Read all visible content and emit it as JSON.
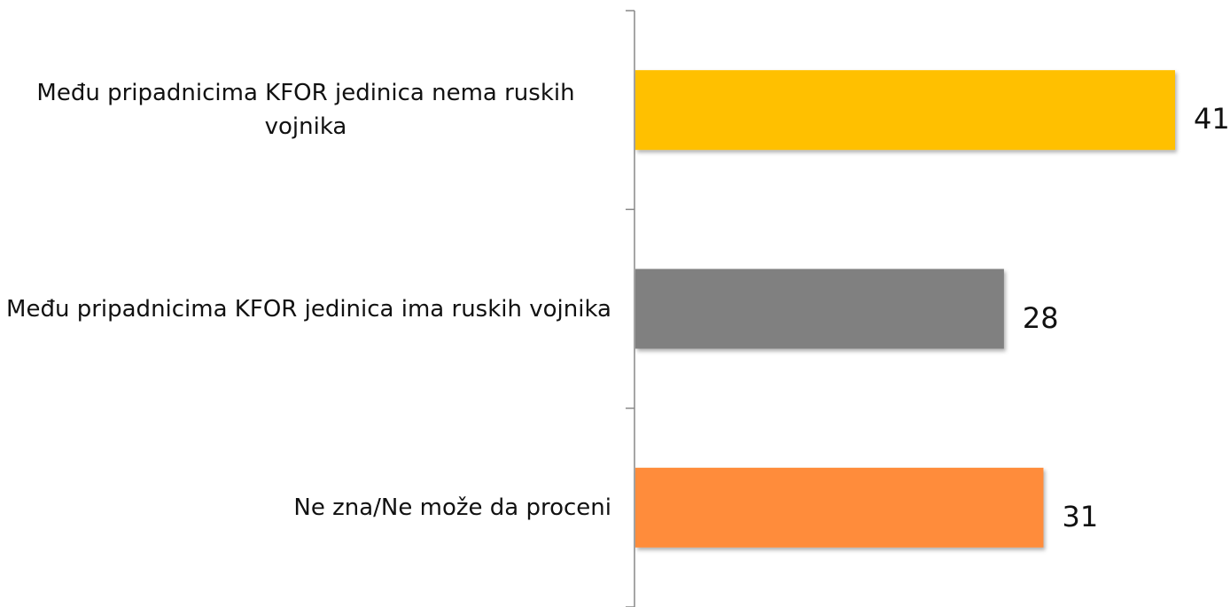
{
  "chart_data": {
    "type": "bar",
    "orientation": "horizontal",
    "categories": [
      "Među pripadnicima KFOR jedinica nema ruskih vojnika",
      "Među pripadnicima KFOR jedinica ima ruskih vojnika",
      "Ne zna/Ne može da proceni"
    ],
    "values": [
      41,
      28,
      31
    ],
    "colors": [
      "#ffc000",
      "#808080",
      "#ff8c3a"
    ]
  }
}
